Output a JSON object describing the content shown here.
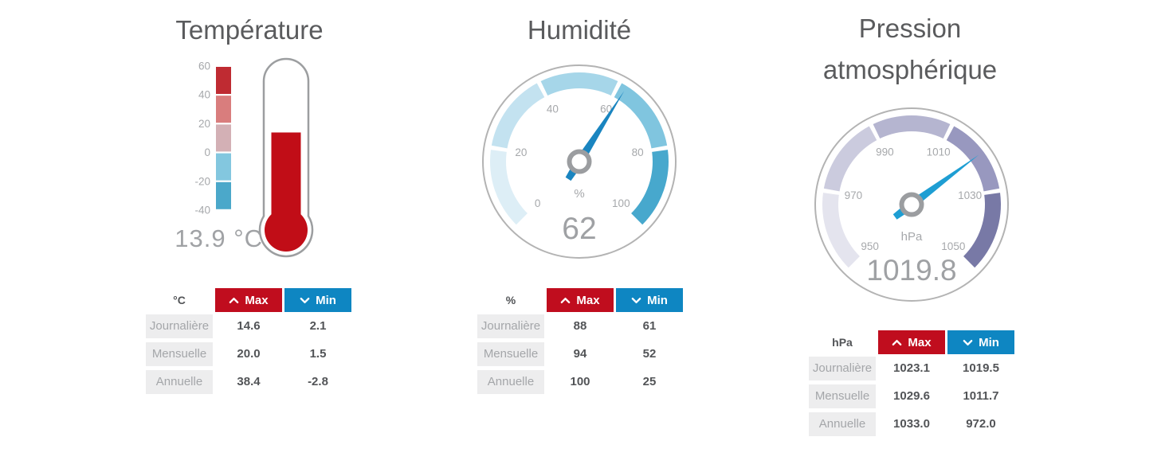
{
  "buttons": {
    "max": "Max",
    "min": "Min"
  },
  "panels": [
    {
      "title": "Température",
      "reading": "13.9 °C",
      "table": {
        "unit": "°C",
        "rows": [
          {
            "label": "Journalière",
            "max": "14.6",
            "min": "2.1"
          },
          {
            "label": "Mensuelle",
            "max": "20.0",
            "min": "1.5"
          },
          {
            "label": "Annuelle",
            "max": "38.4",
            "min": "-2.8"
          }
        ]
      }
    },
    {
      "title": "Humidité",
      "table": {
        "unit": "%",
        "rows": [
          {
            "label": "Journalière",
            "max": "88",
            "min": "61"
          },
          {
            "label": "Mensuelle",
            "max": "94",
            "min": "52"
          },
          {
            "label": "Annuelle",
            "max": "100",
            "min": "25"
          }
        ]
      }
    },
    {
      "title": "Pression atmosphérique",
      "table": {
        "unit": "hPa",
        "rows": [
          {
            "label": "Journalière",
            "max": "1023.1",
            "min": "1019.5"
          },
          {
            "label": "Mensuelle",
            "max": "1029.6",
            "min": "1011.7"
          },
          {
            "label": "Annuelle",
            "max": "1033.0",
            "min": "972.0"
          }
        ]
      }
    }
  ],
  "chart_data": [
    {
      "type": "gauge",
      "variant": "thermometer",
      "title": "Température",
      "unit": "°C",
      "value": 13.9,
      "value_display": "13.9 °C",
      "min": -40,
      "max": 60,
      "ticks": [
        60,
        40,
        20,
        0,
        -20,
        -40
      ],
      "segment_colors": [
        "#bf2b32",
        "#d97d7d",
        "#d3b0b5",
        "#83c7df",
        "#4ba8ca"
      ],
      "fill_color": "#c10d17",
      "stats": {
        "journaliere": {
          "max": 14.6,
          "min": 2.1
        },
        "mensuelle": {
          "max": 20.0,
          "min": 1.5
        },
        "annuelle": {
          "max": 38.4,
          "min": -2.8
        }
      }
    },
    {
      "type": "gauge",
      "variant": "radial-270",
      "title": "Humidité",
      "unit": "%",
      "value": 62,
      "value_display": "62",
      "min": 0,
      "max": 100,
      "ticks": [
        0,
        20,
        40,
        60,
        80,
        100
      ],
      "segment_colors": [
        "#ddeef6",
        "#c3e2f0",
        "#a6d6e9",
        "#80c5df",
        "#47a8cd"
      ],
      "needle_color": "#1a85c0",
      "stats": {
        "journaliere": {
          "max": 88,
          "min": 61
        },
        "mensuelle": {
          "max": 94,
          "min": 52
        },
        "annuelle": {
          "max": 100,
          "min": 25
        }
      }
    },
    {
      "type": "gauge",
      "variant": "radial-270",
      "title": "Pression atmosphérique",
      "unit": "hPa",
      "value": 1019.8,
      "value_display": "1019.8",
      "min": 950,
      "max": 1050,
      "ticks": [
        950,
        970,
        990,
        1010,
        1030,
        1050
      ],
      "segment_colors": [
        "#e4e4ee",
        "#cbcbde",
        "#b5b5d0",
        "#9898bf",
        "#7879a6"
      ],
      "needle_color": "#1e9ed3",
      "stats": {
        "journaliere": {
          "max": 1023.1,
          "min": 1019.5
        },
        "mensuelle": {
          "max": 1029.6,
          "min": 1011.7
        },
        "annuelle": {
          "max": 1033.0,
          "min": 972.0
        }
      }
    }
  ],
  "colors": {
    "max_button": "#c00d1e",
    "min_button": "#0e86c2",
    "title_text": "#5a5b5d",
    "value_text": "#a0a2a5"
  }
}
